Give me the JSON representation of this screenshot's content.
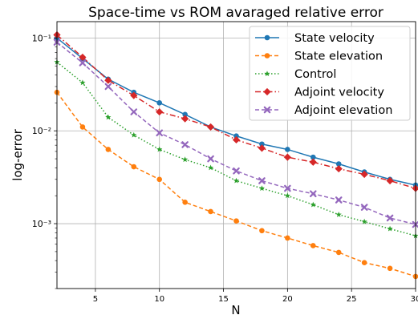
{
  "chart_data": {
    "type": "line",
    "title": "Space-time vs ROM avaraged relative error",
    "xlabel": "N",
    "ylabel": "log-error",
    "xlim": [
      2,
      30
    ],
    "ylim": [
      0.0002,
      0.15
    ],
    "yscale": "log",
    "grid": true,
    "legend_position": "upper right",
    "x": [
      2,
      4,
      6,
      8,
      10,
      12,
      14,
      16,
      18,
      20,
      22,
      24,
      26,
      28,
      30
    ],
    "xticks": [
      5,
      10,
      15,
      20,
      25,
      30
    ],
    "xtick_labels": [
      "5",
      "10",
      "15",
      "20",
      "25",
      "30"
    ],
    "yticks": [
      0.001,
      0.01,
      0.1
    ],
    "ytick_labels": [
      "10⁻³",
      "10⁻²",
      "10⁻¹"
    ],
    "series": [
      {
        "name": "State velocity",
        "color": "#1f77b4",
        "linestyle": "solid",
        "marker": "circle",
        "values": [
          0.1,
          0.06,
          0.036,
          0.026,
          0.02,
          0.015,
          0.011,
          0.0088,
          0.0072,
          0.0063,
          0.0052,
          0.0044,
          0.0036,
          0.003,
          0.0026
        ]
      },
      {
        "name": "State elevation",
        "color": "#ff7f0e",
        "linestyle": "dashed",
        "marker": "circle",
        "values": [
          0.026,
          0.011,
          0.0063,
          0.0041,
          0.003,
          0.0017,
          0.00135,
          0.00107,
          0.00084,
          0.0007,
          0.00058,
          0.00049,
          0.00038,
          0.00033,
          0.00027
        ]
      },
      {
        "name": "Control",
        "color": "#2ca02c",
        "linestyle": "dotted",
        "marker": "star",
        "values": [
          0.055,
          0.033,
          0.014,
          0.009,
          0.0063,
          0.0049,
          0.004,
          0.0029,
          0.0024,
          0.002,
          0.0016,
          0.00125,
          0.00105,
          0.00088,
          0.00074
        ]
      },
      {
        "name": "Adjoint velocity",
        "color": "#d62728",
        "linestyle": "dashdot",
        "marker": "diamond",
        "values": [
          0.108,
          0.062,
          0.035,
          0.024,
          0.016,
          0.0135,
          0.011,
          0.008,
          0.0065,
          0.0052,
          0.0046,
          0.0039,
          0.0034,
          0.0029,
          0.0024
        ]
      },
      {
        "name": "Adjoint elevation",
        "color": "#9467bd",
        "linestyle": "dashed",
        "marker": "x",
        "values": [
          0.09,
          0.054,
          0.03,
          0.016,
          0.0095,
          0.0071,
          0.005,
          0.0037,
          0.0029,
          0.0024,
          0.0021,
          0.0018,
          0.0015,
          0.00115,
          0.00098
        ]
      }
    ]
  }
}
